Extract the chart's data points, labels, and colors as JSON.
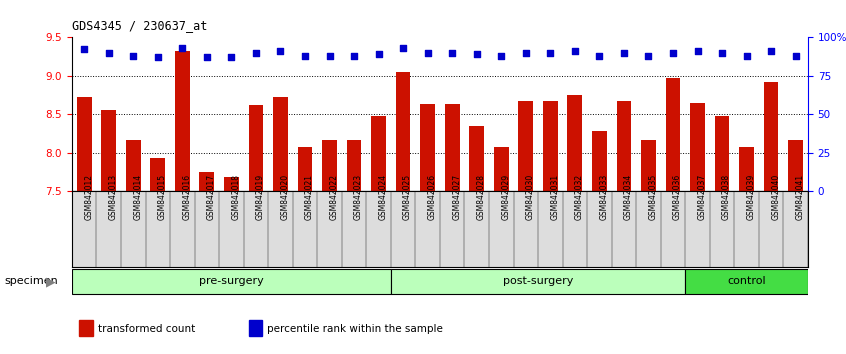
{
  "title": "GDS4345 / 230637_at",
  "categories": [
    "GSM842012",
    "GSM842013",
    "GSM842014",
    "GSM842015",
    "GSM842016",
    "GSM842017",
    "GSM842018",
    "GSM842019",
    "GSM842020",
    "GSM842021",
    "GSM842022",
    "GSM842023",
    "GSM842024",
    "GSM842025",
    "GSM842026",
    "GSM842027",
    "GSM842028",
    "GSM842029",
    "GSM842030",
    "GSM842031",
    "GSM842032",
    "GSM842033",
    "GSM842034",
    "GSM842035",
    "GSM842036",
    "GSM842037",
    "GSM842038",
    "GSM842039",
    "GSM842040",
    "GSM842041"
  ],
  "bar_values": [
    8.72,
    8.56,
    8.17,
    7.93,
    9.32,
    7.75,
    7.68,
    8.62,
    8.72,
    8.08,
    8.17,
    8.17,
    8.47,
    9.05,
    8.63,
    8.63,
    8.35,
    8.08,
    8.67,
    8.67,
    8.75,
    8.28,
    8.67,
    8.17,
    8.97,
    8.65,
    8.48,
    8.08,
    8.92,
    8.17
  ],
  "percentile_values": [
    92,
    90,
    88,
    87,
    93,
    87,
    87,
    90,
    91,
    88,
    88,
    88,
    89,
    93,
    90,
    90,
    89,
    88,
    90,
    90,
    91,
    88,
    90,
    88,
    90,
    91,
    90,
    88,
    91,
    88
  ],
  "groups": [
    {
      "label": "pre-surgery",
      "start": 0,
      "end": 13,
      "color": "#bbffbb"
    },
    {
      "label": "post-surgery",
      "start": 13,
      "end": 25,
      "color": "#bbffbb"
    },
    {
      "label": "control",
      "start": 25,
      "end": 30,
      "color": "#44dd44"
    }
  ],
  "ylim_left": [
    7.5,
    9.5
  ],
  "ylim_right": [
    0,
    100
  ],
  "yticks_left": [
    7.5,
    8.0,
    8.5,
    9.0,
    9.5
  ],
  "yticks_right": [
    0,
    25,
    50,
    75,
    100
  ],
  "ytick_labels_right": [
    "0",
    "25",
    "50",
    "75",
    "100%"
  ],
  "bar_color": "#cc1100",
  "dot_color": "#0000cc",
  "bar_width": 0.6,
  "bg_color": "#ffffff",
  "plot_bg_color": "#ffffff",
  "xtick_bg": "#dddddd",
  "specimen_label": "specimen",
  "legend_items": [
    {
      "label": "transformed count",
      "color": "#cc1100"
    },
    {
      "label": "percentile rank within the sample",
      "color": "#0000cc"
    }
  ]
}
